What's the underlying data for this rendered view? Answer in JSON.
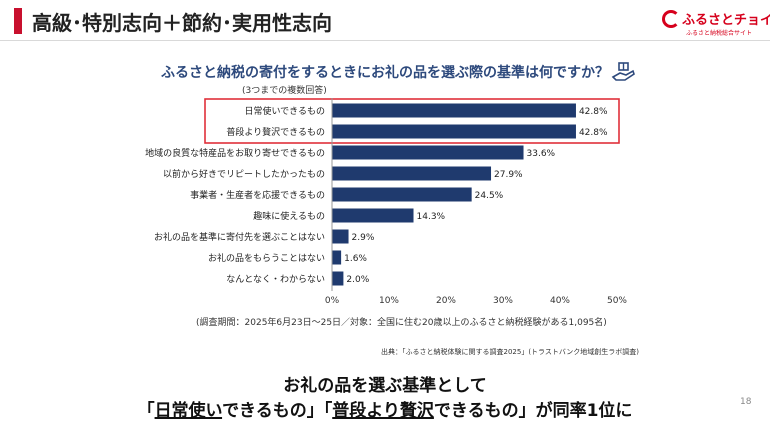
{
  "header": {
    "title": "高級･特別志向＋節約･実用性志向"
  },
  "logo": {
    "name": "ふるさとチョイス",
    "tagline": "ふるさと納税総合サイト"
  },
  "question": {
    "title": "ふるさと納税の寄付をするときにお礼の品を選ぶ際の基準は何ですか？",
    "subtitle": "(3つまでの複数回答)"
  },
  "chart_data": {
    "type": "bar",
    "orientation": "horizontal",
    "categories": [
      "日常使いできるもの",
      "普段より贅沢できるもの",
      "地域の良質な特産品をお取り寄せできるもの",
      "以前から好きでリピートしたかったもの",
      "事業者・生産者を応援できるもの",
      "趣味に使えるもの",
      "お礼の品を基準に寄付先を選ぶことはない",
      "お礼の品をもらうことはない",
      "なんとなく・わからない"
    ],
    "values": [
      42.8,
      42.8,
      33.6,
      27.9,
      24.5,
      14.3,
      2.9,
      1.6,
      2.0
    ],
    "value_labels": [
      "42.8%",
      "42.8%",
      "33.6%",
      "27.9%",
      "24.5%",
      "14.3%",
      "2.9%",
      "1.6%",
      "2.0%"
    ],
    "xlim": [
      0,
      50
    ],
    "xticks": [
      "0%",
      "10%",
      "20%",
      "30%",
      "40%",
      "50%"
    ],
    "highlighted": [
      0,
      1
    ],
    "bar_color": "#1f3a6e",
    "highlight_color": "#e0303a",
    "grid": false
  },
  "survey_note": "(調査期間：2025年6月23日～25日／対象：全国に住む20歳以上のふるさと納税経験がある1,095名)",
  "source": "出典：「ふるさと納税体験に関する調査2025」(トラストバンク地域創生ラボ調査)",
  "conclusion": {
    "line1": "お礼の品を選ぶ基準として",
    "q1_open": "「",
    "item1": "日常使い",
    "item1_tail": "できるもの",
    "q_mid": "」「",
    "item2": "普段より贅沢",
    "item2_tail": "できるもの",
    "q_close": "」が同率1位に"
  },
  "page_number": "18"
}
